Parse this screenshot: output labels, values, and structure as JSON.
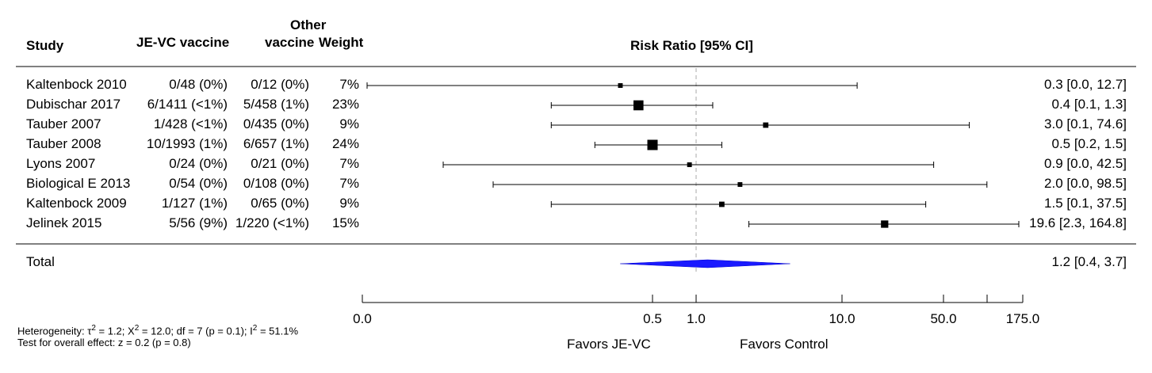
{
  "chart_data": {
    "type": "forest",
    "columns": {
      "study": "Study",
      "je_vc": "JE-VC vaccine",
      "other_line1": "Other",
      "other_line2": "vaccine",
      "weight": "Weight",
      "effect": "Risk Ratio [95% CI]"
    },
    "studies": [
      {
        "name": "Kaltenbock 2010",
        "je_vc": "0/48 (0%)",
        "other": "0/12 (0%)",
        "weight": "7%",
        "rr": 0.3,
        "lo": 0.0,
        "hi": 12.7,
        "label": "0.3 [0.0,  12.7]"
      },
      {
        "name": "Dubischar 2017",
        "je_vc": "6/1411 (<1%)",
        "other": "5/458 (1%)",
        "weight": "23%",
        "rr": 0.4,
        "lo": 0.1,
        "hi": 1.3,
        "label": "0.4 [0.1,   1.3]"
      },
      {
        "name": "Tauber 2007",
        "je_vc": "1/428 (<1%)",
        "other": "0/435 (0%)",
        "weight": "9%",
        "rr": 3.0,
        "lo": 0.1,
        "hi": 74.6,
        "label": "3.0 [0.1,  74.6]"
      },
      {
        "name": "Tauber 2008",
        "je_vc": "10/1993 (1%)",
        "other": "6/657 (1%)",
        "weight": "24%",
        "rr": 0.5,
        "lo": 0.2,
        "hi": 1.5,
        "label": "0.5 [0.2,   1.5]"
      },
      {
        "name": "Lyons 2007",
        "je_vc": "0/24 (0%)",
        "other": "0/21 (0%)",
        "weight": "7%",
        "rr": 0.9,
        "lo": 0.0,
        "hi": 42.5,
        "label": "0.9 [0.0,  42.5]"
      },
      {
        "name": "Biological E 2013",
        "je_vc": "0/54 (0%)",
        "other": "0/108 (0%)",
        "weight": "7%",
        "rr": 2.0,
        "lo": 0.0,
        "hi": 98.5,
        "label": "2.0 [0.0,  98.5]"
      },
      {
        "name": "Kaltenbock 2009",
        "je_vc": "1/127 (1%)",
        "other": "0/65 (0%)",
        "weight": "9%",
        "rr": 1.5,
        "lo": 0.1,
        "hi": 37.5,
        "label": "1.5 [0.1,  37.5]"
      },
      {
        "name": "Jelinek 2015",
        "je_vc": "5/56 (9%)",
        "other": "1/220 (<1%)",
        "weight": "15%",
        "rr": 19.6,
        "lo": 2.3,
        "hi": 164.8,
        "label": "19.6 [2.3, 164.8]"
      }
    ],
    "total": {
      "name": "Total",
      "rr": 1.2,
      "lo": 0.4,
      "hi": 3.7,
      "label": "1.2 [0.4,   3.7]"
    },
    "x_ticks": [
      "0.0",
      "0.5",
      "1.0",
      "10.0",
      "50.0",
      "175.0"
    ],
    "favors_left": "Favors JE-VC",
    "favors_right": "Favors Control",
    "heterogeneity": {
      "prefix": "Heterogeneity:",
      "tau_sym": "τ",
      "tau_sup": "2",
      "tau_val": "= 1.2;",
      "chi_sym": "Χ",
      "chi_sup": "2",
      "chi_val": "= 12.0; df = 7 (p = 0.1);",
      "i_sym": "I",
      "i_sup": "2",
      "i_val": "= 51.1%"
    },
    "overall_effect": "Test for overall effect: z = 0.2 (p = 0.8)"
  }
}
